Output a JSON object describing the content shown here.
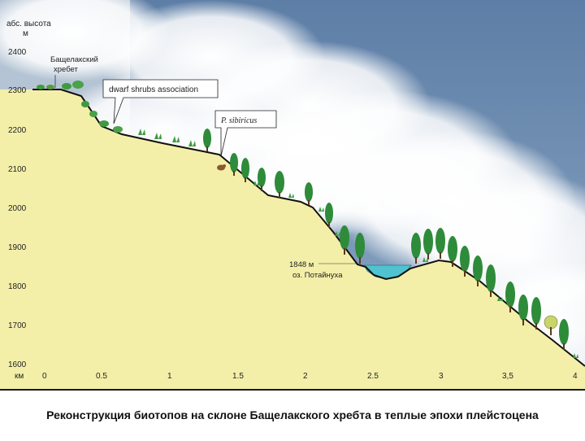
{
  "y_axis": {
    "title_line1": "абс. высота",
    "title_line2": "м",
    "ticks": [
      "2400",
      "2300",
      "2200",
      "2100",
      "2000",
      "1900",
      "1800",
      "1700",
      "1600"
    ]
  },
  "x_axis": {
    "unit": "км",
    "ticks": [
      "0",
      "0.5",
      "1",
      "1.5",
      "2",
      "2.5",
      "3",
      "3,5",
      "4"
    ]
  },
  "ridge_label": {
    "line1": "Бащелакский",
    "line2": "хребет"
  },
  "callouts": {
    "shrubs": "dwarf shrubs association",
    "species": "P. sibiricus"
  },
  "lake_label": {
    "altitude": "1848 м",
    "village": "оз. Потайнуха"
  },
  "caption": "Реконструкция биотопов на склоне Бащелакского хребта в теплые эпохи плейстоцена",
  "colors": {
    "sky": "#6f8fb3",
    "terrain": "#f3efa8",
    "water": "#4fc3cf",
    "tree": "#2e8b3a",
    "grass": "#3f9a3f"
  },
  "icons": [
    "tree-icon",
    "grass-icon",
    "shrub-icon",
    "rodent-icon",
    "deciduous-tree-icon"
  ]
}
